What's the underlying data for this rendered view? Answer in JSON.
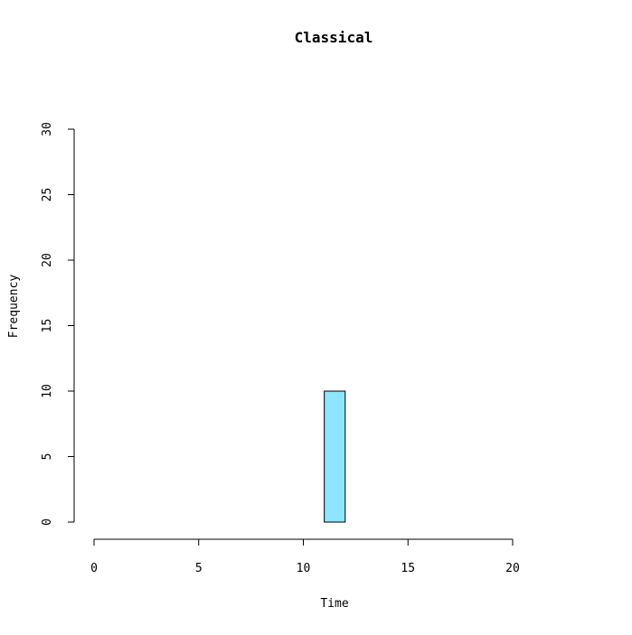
{
  "chart_data": {
    "type": "bar",
    "title": "Classical",
    "xlabel": "Time",
    "ylabel": "Frequency",
    "xlim": [
      0,
      24
    ],
    "ylim": [
      0,
      30
    ],
    "x_ticks": [
      0,
      5,
      10,
      15,
      20
    ],
    "y_ticks": [
      0,
      5,
      10,
      15,
      20,
      25,
      30
    ],
    "bin_width": 1,
    "bins": [
      {
        "start": 0,
        "end": 1,
        "count": 0
      },
      {
        "start": 1,
        "end": 2,
        "count": 0
      },
      {
        "start": 2,
        "end": 3,
        "count": 0
      },
      {
        "start": 3,
        "end": 4,
        "count": 0
      },
      {
        "start": 4,
        "end": 5,
        "count": 0
      },
      {
        "start": 5,
        "end": 6,
        "count": 0
      },
      {
        "start": 6,
        "end": 7,
        "count": 0
      },
      {
        "start": 7,
        "end": 8,
        "count": 0
      },
      {
        "start": 8,
        "end": 9,
        "count": 0
      },
      {
        "start": 9,
        "end": 10,
        "count": 0
      },
      {
        "start": 10,
        "end": 11,
        "count": 0
      },
      {
        "start": 11,
        "end": 12,
        "count": 10
      },
      {
        "start": 12,
        "end": 13,
        "count": 0
      },
      {
        "start": 13,
        "end": 14,
        "count": 0
      },
      {
        "start": 14,
        "end": 15,
        "count": 0
      },
      {
        "start": 15,
        "end": 16,
        "count": 0
      },
      {
        "start": 16,
        "end": 17,
        "count": 0
      },
      {
        "start": 17,
        "end": 18,
        "count": 0
      },
      {
        "start": 18,
        "end": 19,
        "count": 0
      },
      {
        "start": 19,
        "end": 20,
        "count": 0
      },
      {
        "start": 20,
        "end": 21,
        "count": 0
      },
      {
        "start": 21,
        "end": 22,
        "count": 0
      },
      {
        "start": 22,
        "end": 23,
        "count": 0
      },
      {
        "start": 23,
        "end": 24,
        "count": 0
      }
    ],
    "bar_color": "#8EE5FF",
    "bar_border_color": "#000000",
    "grid": false,
    "legend": "none"
  }
}
